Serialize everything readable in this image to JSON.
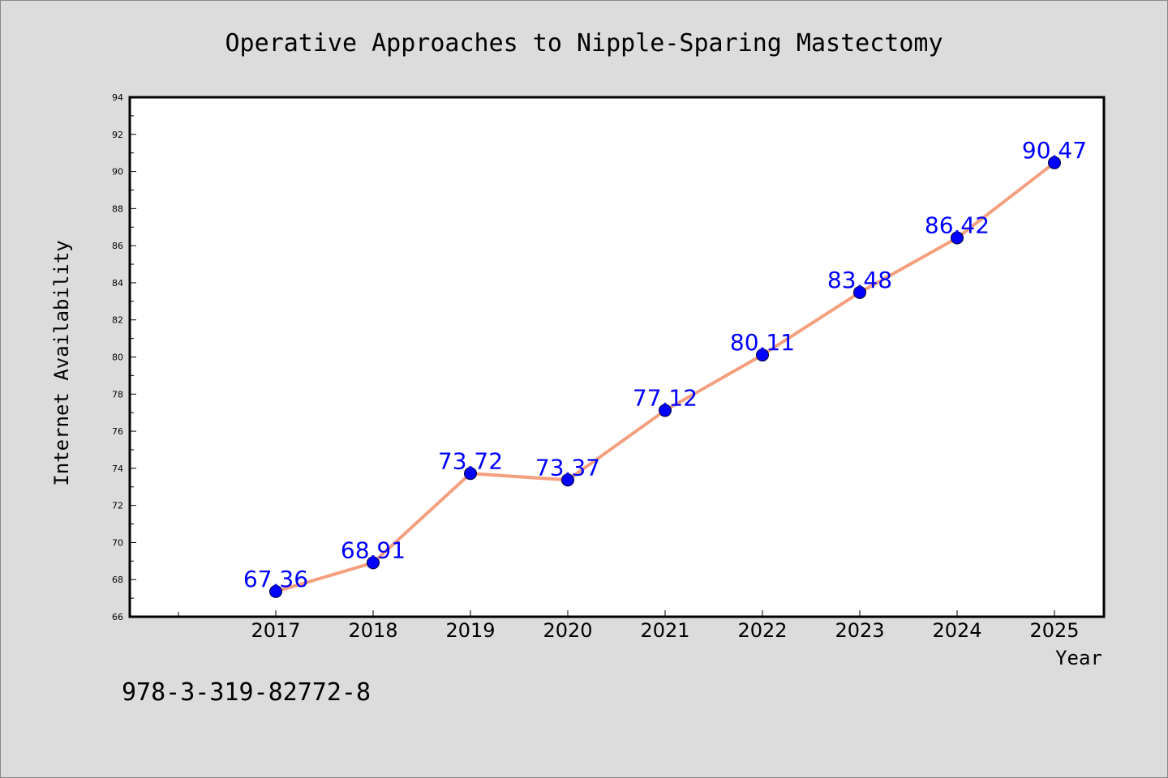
{
  "chart_data": {
    "type": "line",
    "title": "Operative Approaches to Nipple-Sparing Mastectomy",
    "xlabel": "Year",
    "ylabel": "Internet Availability",
    "categories": [
      "2017",
      "2018",
      "2019",
      "2020",
      "2021",
      "2022",
      "2023",
      "2024",
      "2025"
    ],
    "series": [
      {
        "values": [
          67.36,
          68.91,
          73.72,
          73.37,
          77.12,
          80.11,
          83.48,
          86.42,
          90.47
        ],
        "labels": [
          "67.36",
          "68.91",
          "73.72",
          "73.37",
          "77.12",
          "80.11",
          "83.48",
          "86.42",
          "90.47"
        ]
      }
    ],
    "ylim": [
      66,
      94
    ],
    "yticks": [
      "66",
      "68",
      "70",
      "72",
      "74",
      "76",
      "78",
      "80",
      "82",
      "84",
      "86",
      "88",
      "90",
      "92",
      "94"
    ],
    "grid": false,
    "legend": "none"
  },
  "footer_text": "978-3-319-82772-8",
  "colors": {
    "background": "#dcdcdc",
    "plot_area": "#ffffff",
    "line": "#f4a07e",
    "marker": "#0000ff",
    "data_label": "#0000ff"
  }
}
